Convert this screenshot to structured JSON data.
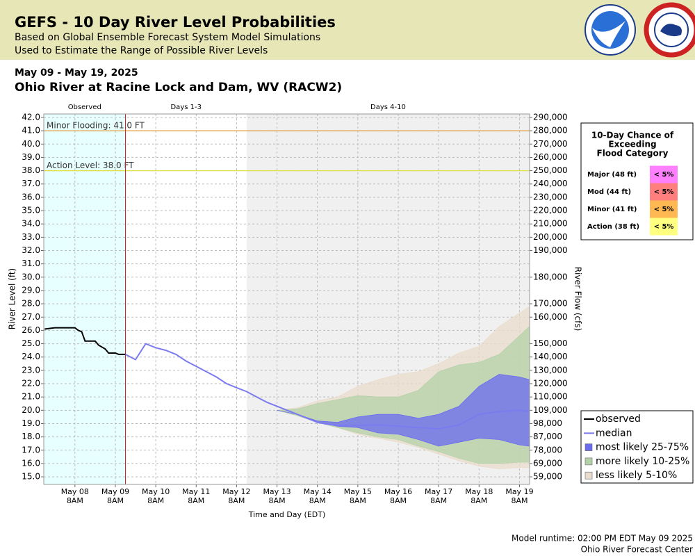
{
  "header": {
    "title": "GEFS - 10 Day River Level Probabilities",
    "subtitle_1": "Based on Global Ensemble Forecast System Model Simulations",
    "subtitle_2": "Used to Estimate the Range of Possible River Levels"
  },
  "chart_data": {
    "type": "river-forecast",
    "date_range": "May 09 - May 19, 2025",
    "title": "Ohio River at Racine Lock and Dam, WV (RACW2)",
    "y_label": "River Level (ft)",
    "y2_label": "River Flow (cfs)",
    "x_label": "Time and Day (EDT)",
    "xlim": [
      "2025-05-07T13:30",
      "2025-05-19T14:00"
    ],
    "xticks": [
      {
        "value": "2025-05-08T08:00",
        "label": [
          "May 08",
          "8AM"
        ]
      },
      {
        "value": "2025-05-09T08:00",
        "label": [
          "May 09",
          "8AM"
        ]
      },
      {
        "value": "2025-05-10T08:00",
        "label": [
          "May 10",
          "8AM"
        ]
      },
      {
        "value": "2025-05-11T08:00",
        "label": [
          "May 11",
          "8AM"
        ]
      },
      {
        "value": "2025-05-12T08:00",
        "label": [
          "May 12",
          "8AM"
        ]
      },
      {
        "value": "2025-05-13T08:00",
        "label": [
          "May 13",
          "8AM"
        ]
      },
      {
        "value": "2025-05-14T08:00",
        "label": [
          "May 14",
          "8AM"
        ]
      },
      {
        "value": "2025-05-15T08:00",
        "label": [
          "May 15",
          "8AM"
        ]
      },
      {
        "value": "2025-05-16T08:00",
        "label": [
          "May 16",
          "8AM"
        ]
      },
      {
        "value": "2025-05-17T08:00",
        "label": [
          "May 17",
          "8AM"
        ]
      },
      {
        "value": "2025-05-18T08:00",
        "label": [
          "May 18",
          "8AM"
        ]
      },
      {
        "value": "2025-05-19T08:00",
        "label": [
          "May 19",
          "8AM"
        ]
      }
    ],
    "ylim": [
      14.43,
      42.26
    ],
    "yticks": [
      {
        "value": 42,
        "label": "42.0"
      },
      {
        "value": 41,
        "label": "41.0"
      },
      {
        "value": 40,
        "label": "40.0"
      },
      {
        "value": 39,
        "label": "39.0"
      },
      {
        "value": 38,
        "label": "38.0"
      },
      {
        "value": 37,
        "label": "37.0"
      },
      {
        "value": 36,
        "label": "36.0"
      },
      {
        "value": 35,
        "label": "35.0"
      },
      {
        "value": 34,
        "label": "34.0"
      },
      {
        "value": 33,
        "label": "33.0"
      },
      {
        "value": 32,
        "label": "32.0"
      },
      {
        "value": 31,
        "label": "31.0"
      },
      {
        "value": 30,
        "label": "30.0"
      },
      {
        "value": 29,
        "label": "29.0"
      },
      {
        "value": 28,
        "label": "28.0"
      },
      {
        "value": 27,
        "label": "27.0"
      },
      {
        "value": 26,
        "label": "26.0"
      },
      {
        "value": 25,
        "label": "25.0"
      },
      {
        "value": 24,
        "label": "24.0"
      },
      {
        "value": 23,
        "label": "23.0"
      },
      {
        "value": 22,
        "label": "22.0"
      },
      {
        "value": 21,
        "label": "21.0"
      },
      {
        "value": 20,
        "label": "20.0"
      },
      {
        "value": 19,
        "label": "19.0"
      },
      {
        "value": 18,
        "label": "18.0"
      },
      {
        "value": 17,
        "label": "17.0"
      },
      {
        "value": 16,
        "label": "16.0"
      },
      {
        "value": 15,
        "label": "15.0"
      }
    ],
    "y2ticks": [
      {
        "value": 290000,
        "label": "290,000",
        "stage": 42
      },
      {
        "value": 280000,
        "label": "280,000",
        "stage": 41
      },
      {
        "value": 270000,
        "label": "270,000",
        "stage": 40
      },
      {
        "value": 260000,
        "label": "260,000",
        "stage": 39
      },
      {
        "value": 250000,
        "label": "250,000",
        "stage": 38
      },
      {
        "value": 240000,
        "label": "240,000",
        "stage": 37
      },
      {
        "value": 230000,
        "label": "230,000",
        "stage": 36
      },
      {
        "value": 220000,
        "label": "220,000",
        "stage": 35
      },
      {
        "value": 210000,
        "label": "210,000",
        "stage": 34
      },
      {
        "value": 200000,
        "label": "200,000",
        "stage": 33
      },
      {
        "value": 190000,
        "label": "190,000",
        "stage": 32
      },
      {
        "value": 180000,
        "label": "180,000",
        "stage": 30
      },
      {
        "value": 170000,
        "label": "170,000",
        "stage": 28
      },
      {
        "value": 160000,
        "label": "160,000",
        "stage": 27
      },
      {
        "value": 150000,
        "label": "150,000",
        "stage": 25
      },
      {
        "value": 140000,
        "label": "140,000",
        "stage": 24
      },
      {
        "value": 130000,
        "label": "130,000",
        "stage": 23
      },
      {
        "value": 120000,
        "label": "120,000",
        "stage": 22
      },
      {
        "value": 110000,
        "label": "110,000",
        "stage": 21
      },
      {
        "value": 109000,
        "label": "109,000",
        "stage": 20
      },
      {
        "value": 98000,
        "label": "98,000",
        "stage": 19
      },
      {
        "value": 87000,
        "label": "87,000",
        "stage": 18
      },
      {
        "value": 78000,
        "label": "78,000",
        "stage": 17
      },
      {
        "value": 69000,
        "label": "69,000",
        "stage": 16
      },
      {
        "value": 59000,
        "label": "59,000",
        "stage": 15
      }
    ],
    "grid": true,
    "regions": [
      {
        "label": "Observed",
        "start": "2025-05-07T13:30",
        "end": "2025-05-09T14:00",
        "color": "#e8ffff"
      },
      {
        "label": "Days 1-3",
        "start": "2025-05-09T14:00",
        "end": "2025-05-12T14:00",
        "color": "#ffffff"
      },
      {
        "label": "Days 4-10",
        "start": "2025-05-12T14:00",
        "end": "2025-05-19T14:00",
        "color": "#f0f0f0"
      }
    ],
    "forecast_start_color": "#cc2222",
    "thresholds": [
      {
        "text": "Minor Flooding: 41.0 FT",
        "value": 41,
        "color": "#e0a040"
      },
      {
        "text": "Action Level: 38.0 FT",
        "value": 38,
        "color": "#e0e040"
      }
    ],
    "series": [
      {
        "name": "observed",
        "kind": "line",
        "color": "#000000",
        "x": [
          "2025-05-07T14:00",
          "2025-05-07T20:00",
          "2025-05-08T02:00",
          "2025-05-08T08:00",
          "2025-05-08T10:00",
          "2025-05-08T12:00",
          "2025-05-08T14:00",
          "2025-05-08T20:00",
          "2025-05-08T22:00",
          "2025-05-09T02:00",
          "2025-05-09T04:00",
          "2025-05-09T08:00",
          "2025-05-09T10:00",
          "2025-05-09T14:00"
        ],
        "values": [
          26.1,
          26.2,
          26.2,
          26.2,
          26.0,
          25.9,
          25.2,
          25.2,
          24.9,
          24.6,
          24.3,
          24.3,
          24.2,
          24.2
        ]
      },
      {
        "name": "median",
        "kind": "line",
        "color": "#7b7bef",
        "x": [
          "2025-05-09T14:00",
          "2025-05-09T20:00",
          "2025-05-10T02:00",
          "2025-05-10T08:00",
          "2025-05-10T14:00",
          "2025-05-10T20:00",
          "2025-05-11T02:00",
          "2025-05-11T08:00",
          "2025-05-11T14:00",
          "2025-05-11T20:00",
          "2025-05-12T02:00",
          "2025-05-12T08:00",
          "2025-05-12T14:00",
          "2025-05-12T20:00",
          "2025-05-13T02:00",
          "2025-05-13T08:00",
          "2025-05-13T14:00",
          "2025-05-13T20:00",
          "2025-05-14T02:00",
          "2025-05-14T08:00",
          "2025-05-14T14:00",
          "2025-05-14T20:00",
          "2025-05-15T08:00",
          "2025-05-15T20:00",
          "2025-05-16T08:00",
          "2025-05-16T20:00",
          "2025-05-17T08:00",
          "2025-05-17T20:00",
          "2025-05-18T08:00",
          "2025-05-18T20:00",
          "2025-05-19T08:00",
          "2025-05-19T14:00"
        ],
        "values": [
          24.2,
          23.8,
          25.0,
          24.7,
          24.5,
          24.2,
          23.7,
          23.3,
          22.9,
          22.5,
          22.0,
          21.7,
          21.4,
          21.0,
          20.6,
          20.3,
          20.0,
          19.7,
          19.4,
          19.1,
          18.95,
          18.85,
          18.85,
          18.9,
          18.8,
          18.7,
          18.6,
          18.9,
          19.7,
          19.9,
          20.0,
          19.9
        ]
      },
      {
        "name": "most likely 25-75%",
        "kind": "band",
        "color": "#6a6af0",
        "x": [
          "2025-05-13T08:00",
          "2025-05-13T20:00",
          "2025-05-14T08:00",
          "2025-05-14T20:00",
          "2025-05-15T08:00",
          "2025-05-15T20:00",
          "2025-05-16T08:00",
          "2025-05-16T20:00",
          "2025-05-17T08:00",
          "2025-05-17T20:00",
          "2025-05-18T08:00",
          "2025-05-18T20:00",
          "2025-05-19T08:00",
          "2025-05-19T14:00"
        ],
        "upper": [
          20.0,
          19.7,
          19.2,
          19.1,
          19.5,
          19.7,
          19.7,
          19.4,
          19.7,
          20.3,
          21.8,
          22.7,
          22.5,
          22.3
        ],
        "lower": [
          20.0,
          19.7,
          19.1,
          18.8,
          18.7,
          18.3,
          18.2,
          17.8,
          17.3,
          17.6,
          17.9,
          17.8,
          17.4,
          17.3
        ]
      },
      {
        "name": "more likely 10-25%",
        "kind": "band",
        "color": "#b4d2a8",
        "x": [
          "2025-05-13T08:00",
          "2025-05-13T20:00",
          "2025-05-14T08:00",
          "2025-05-14T20:00",
          "2025-05-15T08:00",
          "2025-05-15T20:00",
          "2025-05-16T08:00",
          "2025-05-16T20:00",
          "2025-05-17T08:00",
          "2025-05-17T20:00",
          "2025-05-18T08:00",
          "2025-05-18T20:00",
          "2025-05-19T08:00",
          "2025-05-19T14:00"
        ],
        "upper": [
          20.0,
          20.1,
          20.5,
          20.8,
          21.1,
          21.0,
          21.0,
          21.5,
          22.9,
          23.4,
          23.6,
          24.2,
          25.6,
          26.3
        ],
        "lower": [
          20.0,
          19.6,
          19.1,
          18.7,
          18.3,
          18.0,
          17.8,
          17.3,
          16.9,
          16.4,
          16.0,
          16.0,
          16.1,
          16.1
        ]
      },
      {
        "name": "less likely 5-10%",
        "kind": "band",
        "color": "#eadccc",
        "x": [
          "2025-05-13T08:00",
          "2025-05-13T20:00",
          "2025-05-14T08:00",
          "2025-05-14T20:00",
          "2025-05-15T08:00",
          "2025-05-15T20:00",
          "2025-05-16T08:00",
          "2025-05-16T20:00",
          "2025-05-17T08:00",
          "2025-05-17T20:00",
          "2025-05-18T08:00",
          "2025-05-18T20:00",
          "2025-05-19T08:00",
          "2025-05-19T14:00"
        ],
        "upper": [
          20.0,
          20.2,
          20.7,
          21.0,
          21.8,
          22.3,
          22.7,
          22.9,
          23.5,
          24.3,
          24.8,
          26.3,
          27.3,
          27.8
        ],
        "lower": [
          20.0,
          19.6,
          19.1,
          18.7,
          18.2,
          17.9,
          17.6,
          17.2,
          16.7,
          16.2,
          15.8,
          15.6,
          15.7,
          15.7
        ]
      }
    ],
    "flood_table": {
      "title": [
        "10-Day Chance of",
        "Exceeding",
        "Flood Category"
      ],
      "rows": [
        {
          "category": "Major (48 ft)",
          "chance": "< 5%",
          "color": "#ff80ff"
        },
        {
          "category": "Mod (44 ft)",
          "chance": "< 5%",
          "color": "#ff7f7f"
        },
        {
          "category": "Minor (41 ft)",
          "chance": "< 5%",
          "color": "#ffb852"
        },
        {
          "category": "Action (38 ft)",
          "chance": "< 5%",
          "color": "#ffff80"
        }
      ]
    }
  },
  "footer": {
    "runtime": "Model runtime: 02:00 PM EDT May 09 2025",
    "center": "Ohio River Forecast Center"
  }
}
